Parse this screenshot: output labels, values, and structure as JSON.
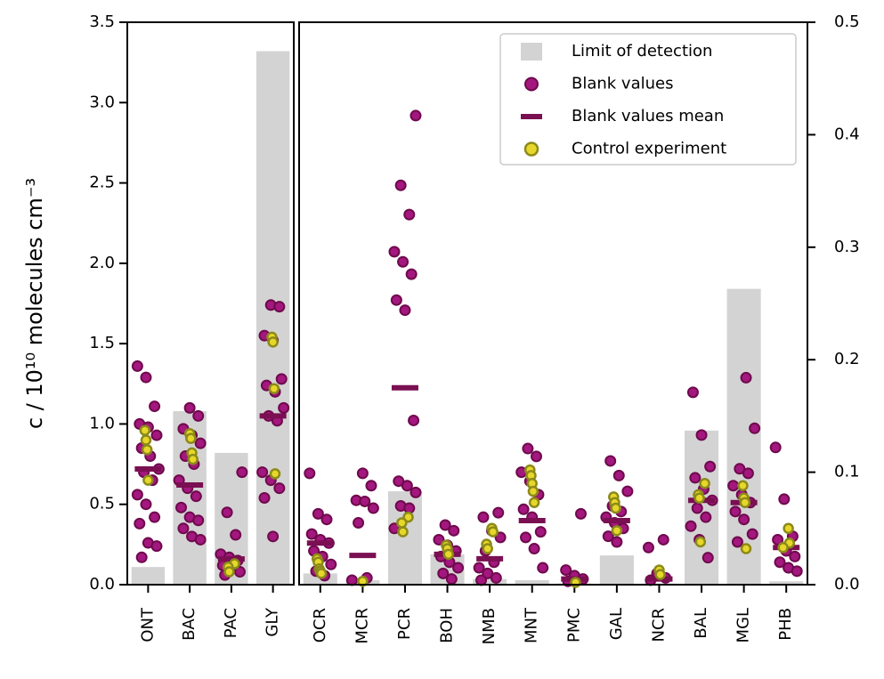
{
  "chart_data": {
    "type": "strip",
    "ylabel": "c / 10¹⁰ molecules cm⁻³",
    "legend": "upper right",
    "series": [
      {
        "name": "Limit of detection",
        "color": "#d3d3d3"
      },
      {
        "name": "Blank values",
        "color": "#a3177e"
      },
      {
        "name": "Blank values mean",
        "color": "#7a0f52"
      },
      {
        "name": "Control experiment",
        "color": "#e6d72a"
      }
    ],
    "panels": [
      {
        "axis": "y",
        "ylim": [
          0,
          3.5
        ],
        "yticks": [
          {
            "value": 0,
            "label": "0.0"
          },
          0.5,
          {
            "value": 1,
            "label": "1.0"
          },
          1.5,
          {
            "value": 2,
            "label": "2.0"
          },
          2.5,
          {
            "value": 3,
            "label": "3.0"
          },
          3.5
        ],
        "categories": [
          "ONT",
          "BAC",
          "PAC",
          "GLY"
        ],
        "lod": [
          0.11,
          1.08,
          0.82,
          3.32
        ],
        "blank": [
          [
            1.36,
            1.29,
            1.11,
            1.0,
            0.98,
            0.93,
            0.85,
            0.8,
            0.72,
            0.7,
            0.65,
            0.56,
            0.5,
            0.42,
            0.38,
            0.26,
            0.24,
            0.17
          ],
          [
            1.1,
            1.05,
            0.97,
            0.93,
            0.88,
            0.8,
            0.75,
            0.65,
            0.6,
            0.55,
            0.48,
            0.42,
            0.4,
            0.35,
            0.3,
            0.28
          ],
          [
            0.7,
            0.45,
            0.31,
            0.19,
            0.17,
            0.15,
            0.12,
            0.1,
            0.08,
            0.06
          ],
          [
            1.74,
            1.73,
            1.55,
            1.52,
            1.28,
            1.24,
            1.2,
            1.1,
            1.05,
            1.02,
            0.7,
            0.65,
            0.6,
            0.54,
            0.3
          ]
        ],
        "mean": [
          0.72,
          0.62,
          0.16,
          1.05
        ],
        "control": [
          [
            0.96,
            0.9,
            0.84,
            0.65
          ],
          [
            0.94,
            0.91,
            0.82,
            0.78
          ],
          [
            0.13,
            0.11,
            0.08
          ],
          [
            1.54,
            1.51,
            1.22,
            0.69
          ]
        ]
      },
      {
        "axis": "y2",
        "ylim": [
          0,
          0.5
        ],
        "yticks": [
          {
            "value": 0,
            "label": "0.0"
          },
          0.1,
          0.2,
          0.3,
          0.4,
          0.5
        ],
        "categories": [
          "OCR",
          "MCR",
          "PCR",
          "BOH",
          "NMB",
          "MNT",
          "PMC",
          "GAL",
          "NCR",
          "BAL",
          "MGL",
          "PHB"
        ],
        "lod": [
          0.01,
          0.004,
          0.083,
          0.027,
          0.005,
          0.004,
          0.001,
          0.026,
          0.001,
          0.137,
          0.263,
          0.003
        ],
        "blank": [
          [
            0.099,
            0.063,
            0.058,
            0.045,
            0.04,
            0.037,
            0.03,
            0.025,
            0.018,
            0.012,
            0.008
          ],
          [
            0.099,
            0.088,
            0.075,
            0.074,
            0.068,
            0.055,
            0.006,
            0.004
          ],
          [
            0.417,
            0.355,
            0.329,
            0.296,
            0.287,
            0.276,
            0.253,
            0.244,
            0.146,
            0.092,
            0.088,
            0.082,
            0.07,
            0.068,
            0.05
          ],
          [
            0.053,
            0.048,
            0.04,
            0.035,
            0.03,
            0.025,
            0.02,
            0.015,
            0.01,
            0.005
          ],
          [
            0.064,
            0.06,
            0.048,
            0.042,
            0.03,
            0.02,
            0.015,
            0.01,
            0.006,
            0.004
          ],
          [
            0.121,
            0.114,
            0.1,
            0.092,
            0.08,
            0.067,
            0.06,
            0.047,
            0.042,
            0.032,
            0.015
          ],
          [
            0.063,
            0.013,
            0.008,
            0.005,
            0.003
          ],
          [
            0.11,
            0.097,
            0.083,
            0.07,
            0.065,
            0.06,
            0.055,
            0.05,
            0.043,
            0.038
          ],
          [
            0.04,
            0.033,
            0.01,
            0.006,
            0.004
          ],
          [
            0.171,
            0.133,
            0.105,
            0.095,
            0.085,
            0.075,
            0.068,
            0.06,
            0.052,
            0.04,
            0.024
          ],
          [
            0.184,
            0.139,
            0.103,
            0.099,
            0.088,
            0.08,
            0.073,
            0.065,
            0.058,
            0.045,
            0.038
          ],
          [
            0.122,
            0.076,
            0.043,
            0.04,
            0.03,
            0.025,
            0.02,
            0.015,
            0.012
          ]
        ],
        "mean": [
          0.037,
          0.026,
          0.175,
          0.027,
          0.023,
          0.057,
          0.005,
          0.057,
          0.005,
          0.075,
          0.073,
          0.033
        ],
        "control": [
          [
            0.023,
            0.02,
            0.014,
            0.012,
            0.01
          ],
          [
            0.003
          ],
          [
            0.06,
            0.055,
            0.047
          ],
          [
            0.035,
            0.032,
            0.027
          ],
          [
            0.05,
            0.047,
            0.036,
            0.032
          ],
          [
            0.102,
            0.097,
            0.09,
            0.083,
            0.073
          ],
          [
            0.002
          ],
          [
            0.078,
            0.073,
            0.068,
            0.048
          ],
          [
            0.013,
            0.009
          ],
          [
            0.09,
            0.08,
            0.077,
            0.038
          ],
          [
            0.088,
            0.077,
            0.073,
            0.032
          ],
          [
            0.05,
            0.037,
            0.033
          ]
        ]
      }
    ]
  }
}
